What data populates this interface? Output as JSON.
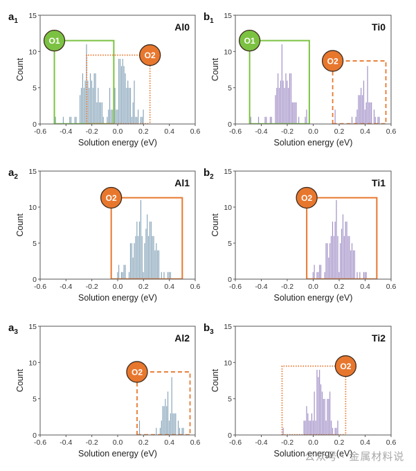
{
  "colors": {
    "al_bar": "#7f9fb5",
    "ti_bar": "#9b89c4",
    "o1": "#7cc242",
    "o2": "#e8772e",
    "axis": "#555555"
  },
  "watermark": "公众号 · 金属材料说",
  "chart_data": [
    {
      "id": "a1",
      "label_letter": "a",
      "label_sub": "1",
      "type": "bar",
      "title": "Al0",
      "xlabel": "Solution energy (eV)",
      "ylabel": "Count",
      "xlim": [
        -0.6,
        0.6
      ],
      "ylim": [
        0,
        15
      ],
      "xticks": [
        "-0.6",
        "-0.4",
        "-0.2",
        "0.0",
        "0.2",
        "0.4",
        "0.6"
      ],
      "yticks": [
        "0",
        "5",
        "10",
        "15"
      ],
      "bar_color": "al",
      "bin_width": 0.01,
      "bars": [
        [
          -0.48,
          1
        ],
        [
          -0.42,
          1
        ],
        [
          -0.37,
          1
        ],
        [
          -0.36,
          1
        ],
        [
          -0.33,
          1
        ],
        [
          -0.32,
          1
        ],
        [
          -0.29,
          4
        ],
        [
          -0.28,
          5
        ],
        [
          -0.27,
          7
        ],
        [
          -0.26,
          5
        ],
        [
          -0.25,
          6
        ],
        [
          -0.24,
          11
        ],
        [
          -0.23,
          6
        ],
        [
          -0.22,
          5
        ],
        [
          -0.21,
          7
        ],
        [
          -0.2,
          6
        ],
        [
          -0.19,
          5
        ],
        [
          -0.18,
          7
        ],
        [
          -0.17,
          7
        ],
        [
          -0.16,
          3
        ],
        [
          -0.15,
          5
        ],
        [
          -0.14,
          3
        ],
        [
          -0.13,
          3
        ],
        [
          -0.12,
          3
        ],
        [
          -0.11,
          1
        ],
        [
          -0.08,
          1
        ],
        [
          -0.07,
          2
        ],
        [
          -0.06,
          5
        ],
        [
          -0.05,
          2
        ],
        [
          -0.04,
          2
        ],
        [
          -0.03,
          2
        ],
        [
          -0.02,
          5
        ],
        [
          -0.01,
          2
        ],
        [
          0.0,
          2
        ],
        [
          0.01,
          9
        ],
        [
          0.02,
          9
        ],
        [
          0.03,
          8
        ],
        [
          0.04,
          9
        ],
        [
          0.05,
          8
        ],
        [
          0.06,
          7
        ],
        [
          0.07,
          5
        ],
        [
          0.08,
          6
        ],
        [
          0.09,
          5
        ],
        [
          0.1,
          5
        ],
        [
          0.11,
          1
        ],
        [
          0.12,
          3
        ],
        [
          0.13,
          6
        ],
        [
          0.14,
          1
        ],
        [
          0.15,
          1
        ],
        [
          0.16,
          2
        ],
        [
          0.18,
          1
        ],
        [
          0.19,
          1
        ],
        [
          0.2,
          2
        ]
      ],
      "regions": [
        {
          "name": "O1",
          "color": "o1",
          "style": "solid",
          "x": [
            -0.49,
            -0.03
          ],
          "y_top": 11.5,
          "badge_at": "left"
        },
        {
          "name": "O2",
          "color": "o2",
          "style": "dotted",
          "x": [
            -0.24,
            0.25
          ],
          "y_top": 9.5,
          "badge_at": "right"
        }
      ]
    },
    {
      "id": "b1",
      "label_letter": "b",
      "label_sub": "1",
      "type": "bar",
      "title": "Ti0",
      "xlabel": "Solution energy (eV)",
      "ylabel": "Count",
      "xlim": [
        -0.6,
        0.6
      ],
      "ylim": [
        0,
        15
      ],
      "xticks": [
        "-0.6",
        "-0.4",
        "-0.2",
        "0.0",
        "0.2",
        "0.4",
        "0.6"
      ],
      "yticks": [
        "0",
        "5",
        "10",
        "15"
      ],
      "bar_color": "ti",
      "bin_width": 0.01,
      "bars": [
        [
          -0.48,
          1
        ],
        [
          -0.42,
          1
        ],
        [
          -0.37,
          1
        ],
        [
          -0.36,
          1
        ],
        [
          -0.33,
          1
        ],
        [
          -0.32,
          1
        ],
        [
          -0.29,
          4
        ],
        [
          -0.28,
          5
        ],
        [
          -0.27,
          7
        ],
        [
          -0.26,
          5
        ],
        [
          -0.25,
          6
        ],
        [
          -0.24,
          11
        ],
        [
          -0.23,
          6
        ],
        [
          -0.22,
          5
        ],
        [
          -0.21,
          7
        ],
        [
          -0.2,
          6
        ],
        [
          -0.19,
          5
        ],
        [
          -0.18,
          7
        ],
        [
          -0.17,
          7
        ],
        [
          -0.16,
          3
        ],
        [
          -0.15,
          3
        ],
        [
          -0.14,
          3
        ],
        [
          -0.13,
          3
        ],
        [
          -0.11,
          1
        ],
        [
          -0.06,
          1
        ],
        [
          -0.05,
          2
        ],
        [
          0.17,
          2
        ],
        [
          0.3,
          1
        ],
        [
          0.33,
          1
        ],
        [
          0.34,
          2
        ],
        [
          0.35,
          4
        ],
        [
          0.36,
          4
        ],
        [
          0.37,
          5
        ],
        [
          0.38,
          4
        ],
        [
          0.39,
          6
        ],
        [
          0.4,
          2
        ],
        [
          0.41,
          3
        ],
        [
          0.42,
          8
        ],
        [
          0.43,
          3
        ],
        [
          0.44,
          3
        ],
        [
          0.45,
          3
        ],
        [
          0.47,
          2
        ],
        [
          0.48,
          1
        ],
        [
          0.5,
          1
        ],
        [
          0.51,
          1
        ]
      ],
      "regions": [
        {
          "name": "O1",
          "color": "o1",
          "style": "solid",
          "x": [
            -0.49,
            -0.03
          ],
          "y_top": 11.5,
          "badge_at": "left"
        },
        {
          "name": "O2",
          "color": "o2",
          "style": "dashed",
          "x": [
            0.15,
            0.56
          ],
          "y_top": 8.7,
          "badge_at": "left"
        }
      ]
    },
    {
      "id": "a2",
      "label_letter": "a",
      "label_sub": "2",
      "type": "bar",
      "title": "Al1",
      "xlabel": "Solution energy (eV)",
      "ylabel": "Count",
      "xlim": [
        -0.6,
        0.6
      ],
      "ylim": [
        0,
        15
      ],
      "xticks": [
        "-0.6",
        "-0.4",
        "-0.2",
        "0.0",
        "0.2",
        "0.4",
        "0.6"
      ],
      "yticks": [
        "0",
        "5",
        "10",
        "15"
      ],
      "bar_color": "al",
      "bin_width": 0.01,
      "bars": [
        [
          0.0,
          1
        ],
        [
          0.01,
          2
        ],
        [
          0.03,
          1
        ],
        [
          0.04,
          1
        ],
        [
          0.05,
          2
        ],
        [
          0.06,
          2
        ],
        [
          0.09,
          1
        ],
        [
          0.1,
          5
        ],
        [
          0.11,
          5
        ],
        [
          0.12,
          3
        ],
        [
          0.13,
          5
        ],
        [
          0.14,
          6
        ],
        [
          0.15,
          8
        ],
        [
          0.16,
          6
        ],
        [
          0.17,
          8
        ],
        [
          0.18,
          11
        ],
        [
          0.19,
          6
        ],
        [
          0.2,
          1
        ],
        [
          0.21,
          5
        ],
        [
          0.22,
          7
        ],
        [
          0.23,
          9
        ],
        [
          0.24,
          6
        ],
        [
          0.25,
          8
        ],
        [
          0.26,
          8
        ],
        [
          0.27,
          6
        ],
        [
          0.28,
          6
        ],
        [
          0.29,
          4
        ],
        [
          0.3,
          5
        ],
        [
          0.31,
          4
        ],
        [
          0.32,
          4
        ],
        [
          0.34,
          1
        ],
        [
          0.36,
          1
        ],
        [
          0.39,
          1
        ],
        [
          0.4,
          1
        ],
        [
          0.41,
          1
        ]
      ],
      "regions": [
        {
          "name": "O2",
          "color": "o2",
          "style": "solid",
          "x": [
            -0.05,
            0.5
          ],
          "y_top": 11.3,
          "badge_at": "left"
        }
      ]
    },
    {
      "id": "b2",
      "label_letter": "b",
      "label_sub": "2",
      "type": "bar",
      "title": "Ti1",
      "xlabel": "Solution energy (eV)",
      "ylabel": "Count",
      "xlim": [
        -0.6,
        0.6
      ],
      "ylim": [
        0,
        15
      ],
      "xticks": [
        "-0.6",
        "-0.4",
        "-0.2",
        "0.0",
        "0.2",
        "0.4",
        "0.6"
      ],
      "yticks": [
        "0",
        "5",
        "10",
        "15"
      ],
      "bar_color": "ti",
      "bin_width": 0.01,
      "bars": [
        [
          0.0,
          1
        ],
        [
          0.01,
          2
        ],
        [
          0.03,
          1
        ],
        [
          0.04,
          1
        ],
        [
          0.05,
          2
        ],
        [
          0.06,
          2
        ],
        [
          0.09,
          1
        ],
        [
          0.1,
          5
        ],
        [
          0.11,
          5
        ],
        [
          0.12,
          3
        ],
        [
          0.13,
          5
        ],
        [
          0.14,
          6
        ],
        [
          0.15,
          8
        ],
        [
          0.16,
          6
        ],
        [
          0.17,
          8
        ],
        [
          0.18,
          11
        ],
        [
          0.19,
          6
        ],
        [
          0.2,
          1
        ],
        [
          0.21,
          5
        ],
        [
          0.22,
          7
        ],
        [
          0.23,
          9
        ],
        [
          0.24,
          6
        ],
        [
          0.25,
          8
        ],
        [
          0.26,
          8
        ],
        [
          0.27,
          6
        ],
        [
          0.28,
          6
        ],
        [
          0.29,
          4
        ],
        [
          0.3,
          5
        ],
        [
          0.31,
          4
        ],
        [
          0.32,
          4
        ],
        [
          0.34,
          1
        ],
        [
          0.36,
          1
        ],
        [
          0.39,
          1
        ],
        [
          0.4,
          1
        ],
        [
          0.41,
          1
        ]
      ],
      "regions": [
        {
          "name": "O2",
          "color": "o2",
          "style": "solid",
          "x": [
            -0.05,
            0.49
          ],
          "y_top": 11.3,
          "badge_at": "left"
        }
      ]
    },
    {
      "id": "a3",
      "label_letter": "a",
      "label_sub": "3",
      "type": "bar",
      "title": "Al2",
      "xlabel": "Solution energy (eV)",
      "ylabel": "Count",
      "xlim": [
        -0.6,
        0.6
      ],
      "ylim": [
        0,
        15
      ],
      "xticks": [
        "-0.6",
        "-0.4",
        "-0.2",
        "0.0",
        "0.2",
        "0.4",
        "0.6"
      ],
      "yticks": [
        "0",
        "5",
        "10",
        "15"
      ],
      "bar_color": "al",
      "bin_width": 0.01,
      "bars": [
        [
          0.17,
          2
        ],
        [
          0.3,
          1
        ],
        [
          0.33,
          1
        ],
        [
          0.34,
          2
        ],
        [
          0.35,
          4
        ],
        [
          0.36,
          4
        ],
        [
          0.37,
          5
        ],
        [
          0.38,
          4
        ],
        [
          0.39,
          6
        ],
        [
          0.4,
          2
        ],
        [
          0.41,
          3
        ],
        [
          0.42,
          8
        ],
        [
          0.43,
          3
        ],
        [
          0.44,
          3
        ],
        [
          0.45,
          3
        ],
        [
          0.47,
          2
        ],
        [
          0.48,
          1
        ],
        [
          0.5,
          1
        ],
        [
          0.51,
          1
        ]
      ],
      "regions": [
        {
          "name": "O2",
          "color": "o2",
          "style": "dashed",
          "x": [
            0.15,
            0.56
          ],
          "y_top": 8.7,
          "badge_at": "left"
        }
      ]
    },
    {
      "id": "b3",
      "label_letter": "b",
      "label_sub": "3",
      "type": "bar",
      "title": "Ti2",
      "xlabel": "Solution energy (eV)",
      "ylabel": "Count",
      "xlim": [
        -0.6,
        0.6
      ],
      "ylim": [
        0,
        15
      ],
      "xticks": [
        "-0.6",
        "-0.4",
        "-0.2",
        "0.0",
        "0.2",
        "0.4",
        "0.6"
      ],
      "yticks": [
        "0",
        "5",
        "10",
        "15"
      ],
      "bar_color": "ti",
      "bin_width": 0.01,
      "bars": [
        [
          -0.23,
          1
        ],
        [
          -0.07,
          2
        ],
        [
          -0.06,
          2
        ],
        [
          -0.05,
          4
        ],
        [
          -0.04,
          3
        ],
        [
          -0.03,
          2
        ],
        [
          -0.02,
          2
        ],
        [
          -0.01,
          3
        ],
        [
          0.0,
          2
        ],
        [
          0.01,
          6
        ],
        [
          0.02,
          2
        ],
        [
          0.03,
          9
        ],
        [
          0.04,
          8
        ],
        [
          0.05,
          9
        ],
        [
          0.06,
          7
        ],
        [
          0.07,
          6
        ],
        [
          0.08,
          5
        ],
        [
          0.09,
          5
        ],
        [
          0.1,
          2
        ],
        [
          0.11,
          5
        ],
        [
          0.12,
          5
        ],
        [
          0.13,
          6
        ],
        [
          0.14,
          2
        ],
        [
          0.15,
          1
        ],
        [
          0.17,
          1
        ],
        [
          0.18,
          1
        ],
        [
          0.19,
          2
        ]
      ],
      "regions": [
        {
          "name": "O2",
          "color": "o2",
          "style": "dotted",
          "x": [
            -0.24,
            0.25
          ],
          "y_top": 9.5,
          "badge_at": "right"
        }
      ]
    }
  ]
}
